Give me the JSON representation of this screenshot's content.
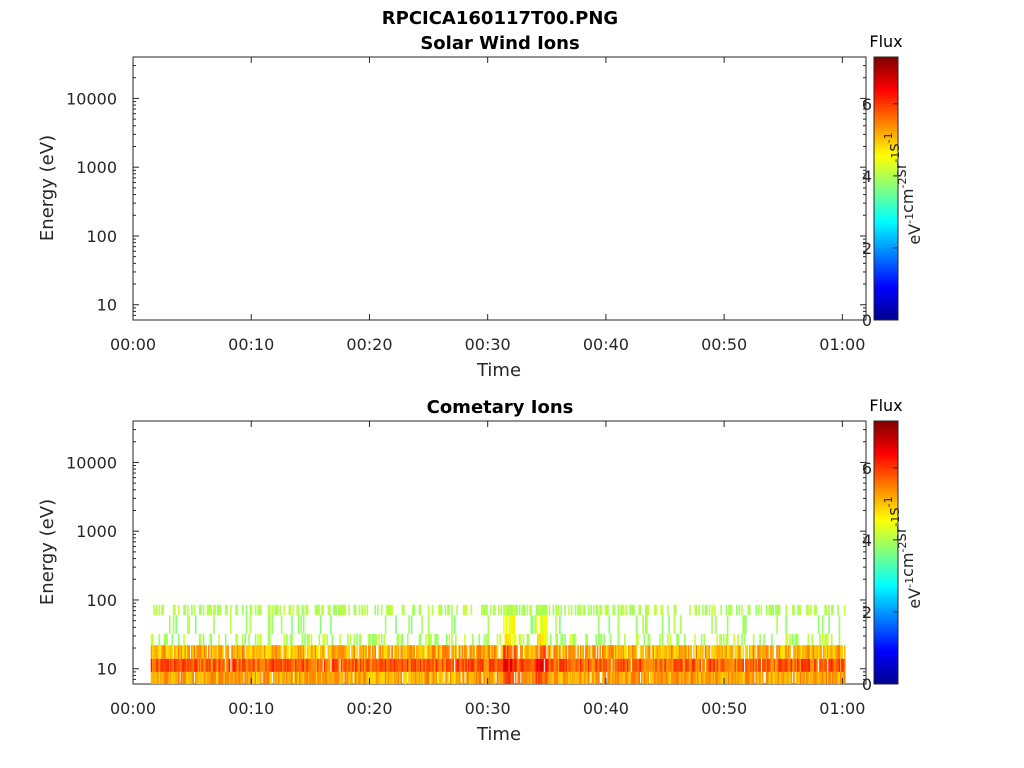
{
  "figure": {
    "title": "RPCICA160117T00.PNG"
  },
  "colormap": [
    "#00008f",
    "#0000ff",
    "#0080ff",
    "#00ffff",
    "#80ff80",
    "#ffff00",
    "#ff8000",
    "#ff0000",
    "#800000"
  ],
  "chart_data": [
    {
      "type": "heatmap",
      "title": "Solar Wind Ions",
      "xlabel": "Time",
      "ylabel": "Energy (eV)",
      "xlim": [
        "00:00",
        "01:02"
      ],
      "ylim": [
        6,
        40000
      ],
      "yscale": "log",
      "x_ticks": [
        "00:00",
        "00:10",
        "00:20",
        "00:30",
        "00:40",
        "00:50",
        "01:00"
      ],
      "y_ticks": [
        "10",
        "100",
        "1000",
        "10000"
      ],
      "colorbar": {
        "title": "Flux",
        "label": "eV-1cm-2sr-1s-1",
        "ticks": [
          "0",
          "2",
          "4",
          "6"
        ],
        "range": [
          0,
          7.3
        ]
      },
      "data_present": false
    },
    {
      "type": "heatmap",
      "title": "Cometary Ions",
      "xlabel": "Time",
      "ylabel": "Energy (eV)",
      "xlim": [
        "00:00",
        "01:02"
      ],
      "ylim": [
        6,
        40000
      ],
      "yscale": "log",
      "x_ticks": [
        "00:00",
        "00:10",
        "00:20",
        "00:30",
        "00:40",
        "00:50",
        "01:00"
      ],
      "y_ticks": [
        "10",
        "100",
        "1000",
        "10000"
      ],
      "colorbar": {
        "title": "Flux",
        "label": "eV-1cm-2sr-1s-1",
        "ticks": [
          "0",
          "2",
          "4",
          "6"
        ],
        "range": [
          0,
          7.3
        ]
      },
      "data_present": true,
      "time_range_min": [
        1.5,
        60.2
      ],
      "bands": [
        {
          "energy_ev": [
            6,
            9
          ],
          "flux_range": [
            4.8,
            5.6
          ],
          "density": 0.95
        },
        {
          "energy_ev": [
            9,
            14
          ],
          "flux_range": [
            5.2,
            6.2
          ],
          "density": 0.97
        },
        {
          "energy_ev": [
            14,
            22
          ],
          "flux_range": [
            4.7,
            5.6
          ],
          "density": 0.85
        },
        {
          "energy_ev": [
            22,
            32
          ],
          "flux_range": [
            3.7,
            4.3
          ],
          "density": 0.3
        },
        {
          "energy_ev": [
            32,
            60
          ],
          "flux_range": [
            3.6,
            4.1
          ],
          "density": 0.12
        },
        {
          "energy_ev": [
            60,
            85
          ],
          "flux_range": [
            3.8,
            4.2
          ],
          "density": 0.45
        }
      ],
      "hotspots_min": [
        31.8,
        34.5
      ]
    }
  ]
}
